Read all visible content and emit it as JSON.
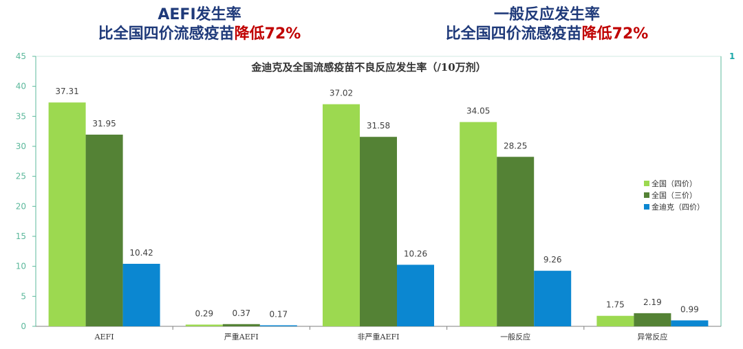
{
  "headlines": [
    {
      "line1": "AEFI发生率",
      "line2_prefix": "比全国四价流感疫苗",
      "line2_highlight": "降低72%"
    },
    {
      "line1": "一般反应发生率",
      "line2_prefix": "比全国四价流感疫苗",
      "line2_highlight": "降低72%"
    }
  ],
  "chart_data": {
    "type": "bar",
    "title": "金迪克及全国流感疫苗不良反应发生率（/10万剂）",
    "categories": [
      "AEFI",
      "严重AEFI",
      "非严重AEFI",
      "一般反应",
      "异常反应"
    ],
    "series": [
      {
        "name": "全国（四价）",
        "color": "#9cd950",
        "values": [
          37.31,
          0.29,
          37.02,
          34.05,
          1.75
        ]
      },
      {
        "name": "全国（三价）",
        "color": "#548235",
        "values": [
          31.95,
          0.37,
          31.58,
          28.25,
          2.19
        ]
      },
      {
        "name": "金迪克（四价）",
        "color": "#0b87d1",
        "values": [
          10.42,
          0.17,
          10.26,
          9.26,
          0.99
        ]
      }
    ],
    "ylim": [
      0,
      45
    ],
    "yticks": [
      0,
      5,
      10,
      15,
      20,
      25,
      30,
      35,
      40,
      45
    ],
    "right_axis_label": "1",
    "axis_color": "#5bb89b",
    "grid": false,
    "legend_position": "right"
  }
}
